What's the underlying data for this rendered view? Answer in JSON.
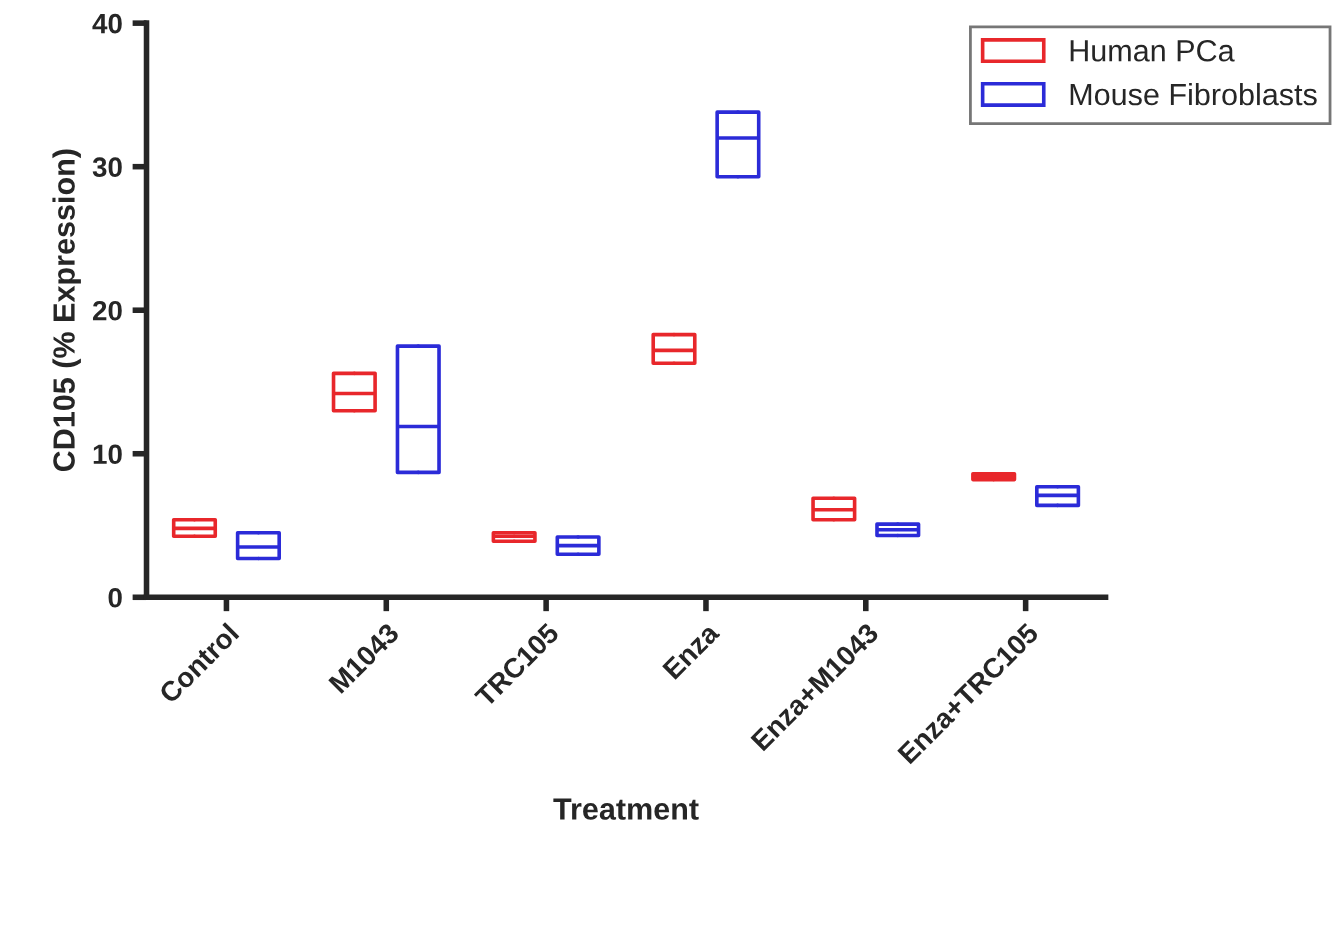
{
  "chart_data": {
    "type": "box",
    "xlabel": "Treatment",
    "ylabel": "CD105 (% Expression)",
    "categories": [
      "Control",
      "M1043",
      "TRC105",
      "Enza",
      "Enza+M1043",
      "Enza+TRC105"
    ],
    "series": [
      {
        "name": "Human PCa",
        "color": "#e8272b",
        "boxes": [
          {
            "low": 4.25,
            "q1": 4.25,
            "median": 4.8,
            "q3": 5.4,
            "high": 5.4
          },
          {
            "low": 13.0,
            "q1": 13.0,
            "median": 14.2,
            "q3": 15.6,
            "high": 15.6
          },
          {
            "low": 3.9,
            "q1": 3.9,
            "median": 4.25,
            "q3": 4.5,
            "high": 4.5
          },
          {
            "low": 16.3,
            "q1": 16.3,
            "median": 17.2,
            "q3": 18.3,
            "high": 18.3
          },
          {
            "low": 5.4,
            "q1": 5.4,
            "median": 6.1,
            "q3": 6.9,
            "high": 6.9
          },
          {
            "low": 8.2,
            "q1": 8.2,
            "median": 8.4,
            "q3": 8.6,
            "high": 8.6
          }
        ]
      },
      {
        "name": "Mouse Fibroblasts",
        "color": "#2b2bd8",
        "boxes": [
          {
            "low": 2.7,
            "q1": 2.7,
            "median": 3.5,
            "q3": 4.5,
            "high": 4.5
          },
          {
            "low": 8.7,
            "q1": 8.7,
            "median": 11.9,
            "q3": 17.5,
            "high": 17.5
          },
          {
            "low": 3.0,
            "q1": 3.0,
            "median": 3.6,
            "q3": 4.2,
            "high": 4.2
          },
          {
            "low": 29.3,
            "q1": 29.3,
            "median": 32.0,
            "q3": 33.8,
            "high": 33.8
          },
          {
            "low": 4.3,
            "q1": 4.3,
            "median": 4.7,
            "q3": 5.1,
            "high": 5.1
          },
          {
            "low": 6.4,
            "q1": 6.4,
            "median": 7.1,
            "q3": 7.7,
            "high": 7.7
          }
        ]
      }
    ],
    "ylim": [
      0,
      40
    ],
    "yticks": [
      0,
      10,
      20,
      30,
      40
    ],
    "legend": "top right",
    "grid": false
  }
}
